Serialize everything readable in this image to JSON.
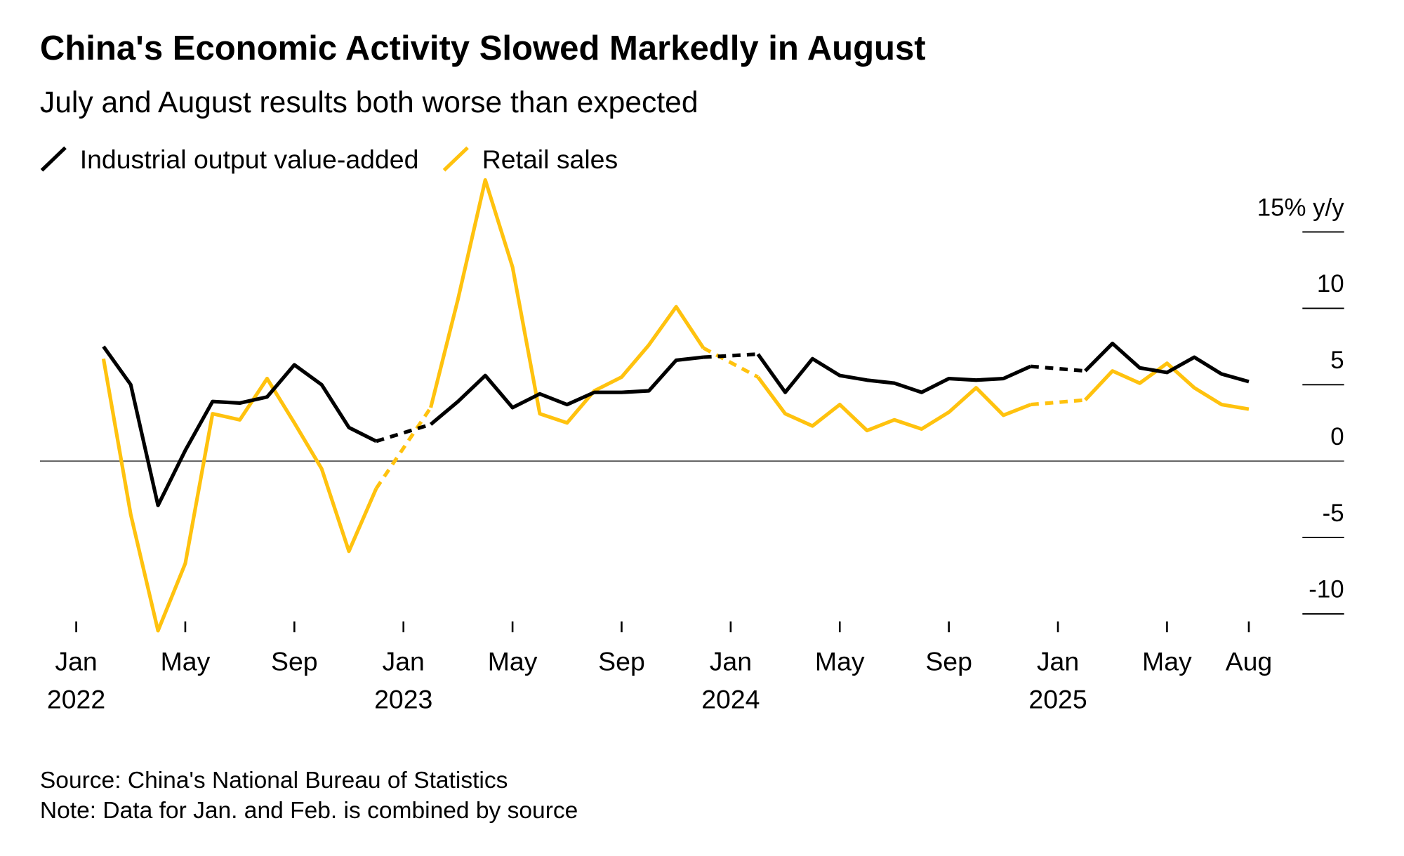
{
  "chart_data": {
    "type": "line",
    "title": "China's Economic Activity Slowed Markedly in August",
    "subtitle": "July and August results both worse than expected",
    "source": "Source: China's National Bureau of Statistics",
    "note": "Note: Data for Jan. and Feb. is combined by source",
    "categories": [
      [
        "Jan",
        "2022"
      ],
      null,
      null,
      null,
      "May",
      null,
      null,
      null,
      "Sep",
      null,
      null,
      null,
      [
        "Jan",
        "2023"
      ],
      null,
      null,
      null,
      "May",
      null,
      null,
      null,
      "Sep",
      null,
      null,
      null,
      [
        "Jan",
        "2024"
      ],
      null,
      null,
      null,
      "May",
      null,
      null,
      null,
      "Sep",
      null,
      null,
      null,
      [
        "Jan",
        "2025"
      ],
      null,
      null,
      null,
      "May",
      null,
      null,
      "Aug"
    ],
    "series": [
      {
        "name": "Industrial output value-added",
        "color": "#000000",
        "values": [
          null,
          7.5,
          5.0,
          -2.9,
          0.7,
          3.9,
          3.8,
          4.2,
          6.3,
          5.0,
          2.2,
          1.3,
          null,
          2.4,
          3.9,
          5.6,
          3.5,
          4.4,
          3.7,
          4.5,
          4.5,
          4.6,
          6.6,
          6.8,
          null,
          7.0,
          4.5,
          6.7,
          5.6,
          5.3,
          5.1,
          4.5,
          5.4,
          5.3,
          5.4,
          6.2,
          null,
          5.9,
          7.7,
          6.1,
          5.8,
          6.8,
          5.7,
          5.2
        ]
      },
      {
        "name": "Retail sales",
        "color": "#ffc20e",
        "values": [
          null,
          6.7,
          -3.5,
          -11.1,
          -6.7,
          3.1,
          2.7,
          5.4,
          2.5,
          -0.5,
          -5.9,
          -1.8,
          null,
          3.5,
          10.6,
          18.4,
          12.7,
          3.1,
          2.5,
          4.6,
          5.5,
          7.6,
          10.1,
          7.4,
          null,
          5.5,
          3.1,
          2.3,
          3.7,
          2.0,
          2.7,
          2.1,
          3.2,
          4.8,
          3.0,
          3.7,
          null,
          4.0,
          5.9,
          5.1,
          6.4,
          4.8,
          3.7,
          3.4
        ]
      }
    ],
    "ylim": [
      -11.5,
      18.5
    ],
    "yticks": [
      -10,
      -5,
      0,
      5,
      10,
      {
        "value": 15,
        "label": "15% y/y"
      }
    ]
  }
}
